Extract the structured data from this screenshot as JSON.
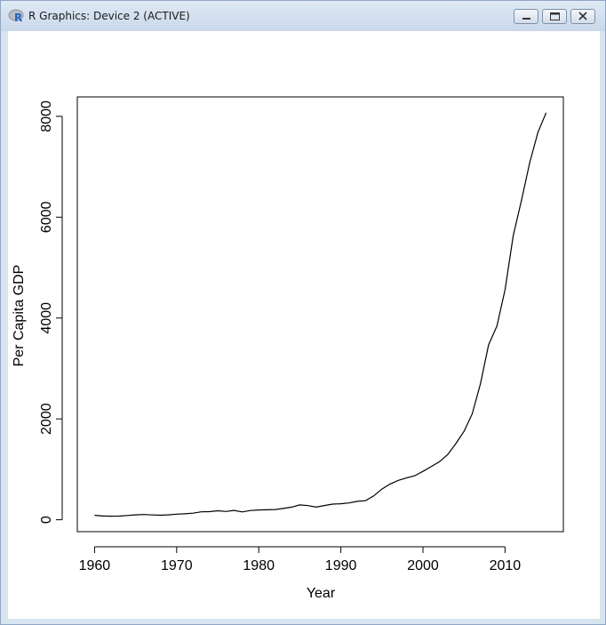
{
  "window": {
    "title": "R Graphics: Device 2 (ACTIVE)",
    "app_icon": "r-logo-icon",
    "buttons": [
      "minimize-icon",
      "restore-icon",
      "close-icon"
    ]
  },
  "chart_data": {
    "type": "line",
    "title": "",
    "xlabel": "Year",
    "ylabel": "Per Capita GDP",
    "xlim": [
      1957.9,
      2017.1
    ],
    "ylim": [
      -236,
      8385
    ],
    "x_ticks": [
      1960,
      1970,
      1980,
      1990,
      2000,
      2010
    ],
    "x_tick_labels": [
      "1960",
      "1970",
      "1980",
      "1990",
      "2000",
      "2010"
    ],
    "y_ticks": [
      0,
      2000,
      4000,
      6000,
      8000
    ],
    "y_tick_labels": [
      "0",
      "2000",
      "4000",
      "6000",
      "8000"
    ],
    "grid": false,
    "legend": "none",
    "series": [
      {
        "x": [
          1960,
          1961,
          1962,
          1963,
          1964,
          1965,
          1966,
          1967,
          1968,
          1969,
          1970,
          1971,
          1972,
          1973,
          1974,
          1975,
          1976,
          1977,
          1978,
          1979,
          1980,
          1981,
          1982,
          1983,
          1984,
          1985,
          1986,
          1987,
          1988,
          1989,
          1990,
          1991,
          1992,
          1993,
          1994,
          1995,
          1996,
          1997,
          1998,
          1999,
          2000,
          2001,
          2002,
          2003,
          2004,
          2005,
          2006,
          2007,
          2008,
          2009,
          2010,
          2011,
          2012,
          2013,
          2014,
          2015
        ],
        "y": [
          89,
          75,
          70,
          72,
          85,
          98,
          104,
          96,
          91,
          97,
          112,
          118,
          131,
          157,
          160,
          178,
          165,
          185,
          156,
          183,
          195,
          197,
          203,
          225,
          250,
          294,
          281,
          251,
          283,
          311,
          318,
          333,
          366,
          377,
          473,
          609,
          709,
          781,
          828,
          873,
          959,
          1053,
          1149,
          1289,
          1509,
          1753,
          2099,
          2695,
          3471,
          3838,
          4561,
          5634,
          6337,
          7078,
          7684,
          8069
        ],
        "color": "#000000"
      }
    ]
  }
}
